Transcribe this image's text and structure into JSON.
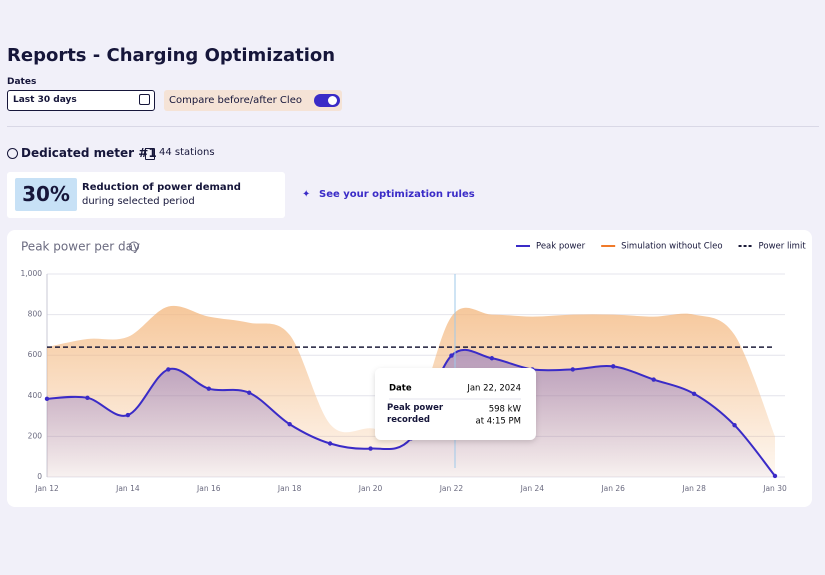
{
  "header": {
    "title": "Reports - Charging Optimization"
  },
  "filters": {
    "dates_label": "Dates",
    "dates_value": "Last 30 days",
    "compare_label": "Compare before/after Cleo"
  },
  "meter": {
    "name": "Dedicated meter #1",
    "stations": "44 stations"
  },
  "summary": {
    "percent": "30%",
    "headline": "Reduction of power demand",
    "sub": "during selected period",
    "link": "See your optimization rules"
  },
  "chart_data": {
    "type": "line",
    "title": "Peak power per day",
    "categories": [
      "Jan 12",
      null,
      "Jan 14",
      null,
      "Jan 16",
      null,
      "Jan 18",
      null,
      "Jan 20",
      null,
      "Jan 22",
      null,
      "Jan 24",
      null,
      "Jan 26",
      null,
      "Jan 28",
      null,
      "Jan 30"
    ],
    "series": [
      {
        "name": "Peak power",
        "color": "#3a2bc7",
        "fill": true,
        "markers": true,
        "values": [
          385,
          390,
          305,
          530,
          435,
          415,
          260,
          165,
          140,
          190,
          598,
          585,
          530,
          530,
          545,
          480,
          410,
          255,
          5
        ]
      },
      {
        "name": "Simulation without Cleo",
        "color": "#f07a2a",
        "fill": true,
        "markers": false,
        "values": [
          640,
          680,
          690,
          840,
          790,
          760,
          700,
          260,
          240,
          250,
          790,
          800,
          790,
          800,
          800,
          790,
          800,
          700,
          200
        ]
      },
      {
        "name": "Power limit",
        "color": "#1c1c3a",
        "dashed": true,
        "values": [
          640,
          640,
          640,
          640,
          640,
          640,
          640,
          640,
          640,
          640,
          640,
          640,
          640,
          640,
          640,
          640,
          640,
          640,
          640
        ]
      }
    ],
    "ylim": [
      0,
      1000
    ],
    "yticks": [
      0,
      200,
      400,
      600,
      800,
      {
        "value": 1000,
        "label": "1,000"
      }
    ],
    "grid": true,
    "tooltip": {
      "date_label": "Date",
      "date": "Jan 22, 2024",
      "value_label": "Peak power recorded",
      "value": "598 kW",
      "time": "at 4:15 PM"
    }
  }
}
